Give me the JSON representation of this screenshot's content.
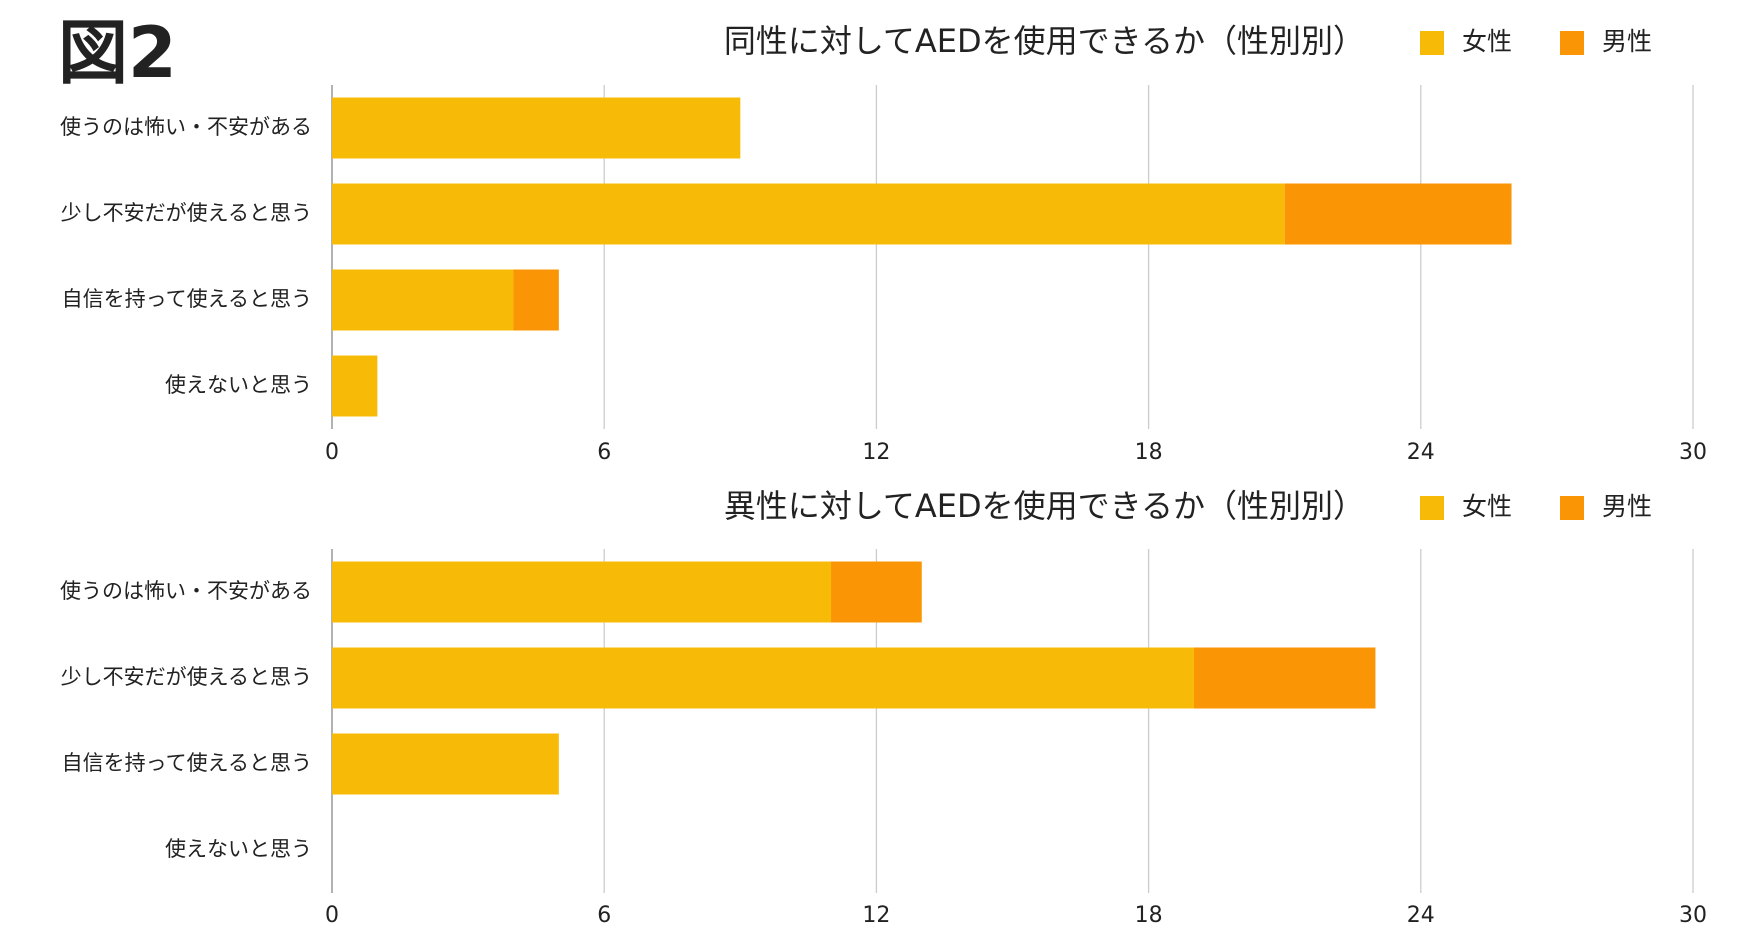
{
  "figure_label": "図2",
  "chart_data": [
    {
      "type": "bar",
      "orientation": "horizontal",
      "stacked": true,
      "title": "同性に対してAEDを使用できるか（性別別）",
      "categories": [
        "使うのは怖い・不安がある",
        "少し不安だが使えると思う",
        "自信を持って使えると思う",
        "使えないと思う"
      ],
      "series": [
        {
          "name": "女性",
          "color": "#f7bb07",
          "values": [
            9,
            21,
            4,
            1
          ]
        },
        {
          "name": "男性",
          "color": "#fa9505",
          "values": [
            0,
            5,
            1,
            0
          ]
        }
      ],
      "xlim": [
        0,
        30
      ],
      "xticks": [
        0,
        6,
        12,
        18,
        24,
        30
      ],
      "grid": true,
      "legend": "top-right"
    },
    {
      "type": "bar",
      "orientation": "horizontal",
      "stacked": true,
      "title": "異性に対してAEDを使用できるか（性別別）",
      "categories": [
        "使うのは怖い・不安がある",
        "少し不安だが使えると思う",
        "自信を持って使えると思う",
        "使えないと思う"
      ],
      "series": [
        {
          "name": "女性",
          "color": "#f7bb07",
          "values": [
            11,
            19,
            5,
            0
          ]
        },
        {
          "name": "男性",
          "color": "#fa9505",
          "values": [
            2,
            4,
            0,
            0
          ]
        }
      ],
      "xlim": [
        0,
        30
      ],
      "xticks": [
        0,
        6,
        12,
        18,
        24,
        30
      ],
      "grid": true,
      "legend": "top-right"
    }
  ]
}
